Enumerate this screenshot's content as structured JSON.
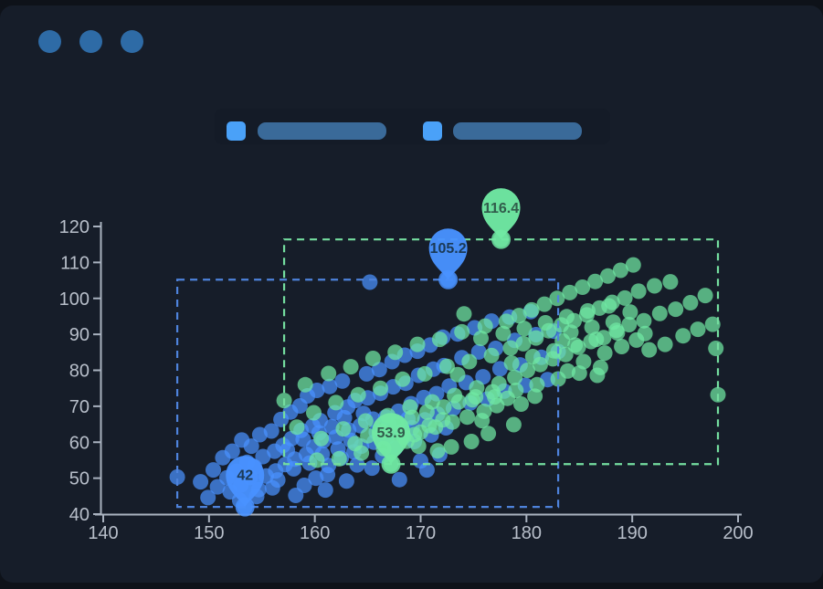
{
  "window": {
    "frame_background": "#0e1219",
    "background": "#161d29",
    "control_dot_color": "#2e6ba6",
    "control_dots": [
      "window-dot-1",
      "window-dot-2",
      "window-dot-3"
    ]
  },
  "legend": {
    "background": "#141b27",
    "items": [
      {
        "label_text": "",
        "label_redacted": true,
        "swatch_color": "#4aa1f8",
        "bar_color": "#3a6a99"
      },
      {
        "label_text": "",
        "label_redacted": true,
        "swatch_color": "#4aa1f8",
        "bar_color": "#3a6a99"
      }
    ]
  },
  "chart_data": {
    "type": "scatter",
    "title": "",
    "xlabel": "",
    "ylabel": "",
    "xlim": [
      140,
      200
    ],
    "ylim": [
      40,
      120
    ],
    "x_ticks": [
      140,
      150,
      160,
      170,
      180,
      190,
      200
    ],
    "y_ticks": [
      40,
      50,
      60,
      70,
      80,
      90,
      100,
      110,
      120
    ],
    "grid": false,
    "legend_position": "top",
    "axis_color": "#a9b2bf",
    "tick_label_color": "#b8bfca",
    "series": [
      {
        "name": "series-blue",
        "color": "#4992ff",
        "dash_color": "#4e83dc",
        "pin_label_color": "#1b3a57",
        "bounds": {
          "x": [
            147.0,
            183.0
          ],
          "y": [
            42.0,
            105.2
          ]
        },
        "max_point": {
          "x": 172.6,
          "y": 105.2,
          "label": "105.2"
        },
        "min_point": {
          "x": 153.4,
          "y": 42.0,
          "label": "42"
        },
        "points": [
          [
            147.0,
            50.3
          ],
          [
            149.2,
            49.0
          ],
          [
            149.9,
            44.6
          ],
          [
            150.4,
            52.3
          ],
          [
            150.8,
            47.6
          ],
          [
            151.3,
            55.7
          ],
          [
            151.7,
            50.1
          ],
          [
            152.0,
            46.2
          ],
          [
            152.2,
            57.5
          ],
          [
            152.6,
            51.9
          ],
          [
            152.9,
            43.8
          ],
          [
            153.0,
            48.1
          ],
          [
            153.1,
            60.6
          ],
          [
            153.4,
            42.0
          ],
          [
            153.6,
            54.4
          ],
          [
            153.9,
            50.2
          ],
          [
            154.0,
            58.9
          ],
          [
            154.3,
            53.1
          ],
          [
            154.5,
            44.9
          ],
          [
            154.7,
            46.8
          ],
          [
            154.8,
            62.1
          ],
          [
            155.1,
            56.0
          ],
          [
            155.4,
            50.6
          ],
          [
            155.9,
            63.1
          ],
          [
            156.0,
            47.3
          ],
          [
            156.2,
            57.5
          ],
          [
            156.3,
            52.0
          ],
          [
            156.5,
            49.5
          ],
          [
            156.8,
            66.3
          ],
          [
            157.0,
            59.1
          ],
          [
            157.2,
            53.8
          ],
          [
            157.4,
            57.8
          ],
          [
            157.7,
            68.4
          ],
          [
            157.8,
            61.0
          ],
          [
            158.0,
            52.6
          ],
          [
            158.1,
            55.3
          ],
          [
            158.2,
            45.2
          ],
          [
            158.6,
            70.1
          ],
          [
            158.7,
            63.3
          ],
          [
            158.9,
            60.8
          ],
          [
            159.0,
            48.0
          ],
          [
            159.2,
            56.6
          ],
          [
            159.3,
            72.9
          ],
          [
            159.5,
            54.2
          ],
          [
            159.8,
            64.5
          ],
          [
            159.9,
            58.7
          ],
          [
            160.1,
            50.0
          ],
          [
            160.2,
            74.4
          ],
          [
            160.4,
            62.6
          ],
          [
            160.5,
            66.0
          ],
          [
            160.7,
            56.7
          ],
          [
            160.8,
            60.4
          ],
          [
            161.0,
            46.7
          ],
          [
            161.2,
            51.0
          ],
          [
            161.3,
            53.5
          ],
          [
            161.4,
            75.5
          ],
          [
            161.6,
            64.3
          ],
          [
            161.9,
            68.2
          ],
          [
            162.0,
            61.4
          ],
          [
            162.2,
            58.1
          ],
          [
            162.5,
            55.6
          ],
          [
            162.6,
            77.0
          ],
          [
            162.8,
            66.8
          ],
          [
            163.0,
            49.2
          ],
          [
            163.1,
            69.8
          ],
          [
            163.2,
            63.4
          ],
          [
            163.4,
            60.5
          ],
          [
            163.7,
            57.3
          ],
          [
            163.8,
            71.6
          ],
          [
            164.0,
            53.7
          ],
          [
            164.3,
            64.6
          ],
          [
            164.4,
            58.9
          ],
          [
            164.6,
            68.0
          ],
          [
            164.9,
            79.0
          ],
          [
            165.0,
            72.3
          ],
          [
            165.2,
            104.5
          ],
          [
            165.4,
            52.8
          ],
          [
            165.5,
            66.4
          ],
          [
            165.6,
            60.0
          ],
          [
            165.8,
            62.8
          ],
          [
            166.1,
            80.2
          ],
          [
            166.2,
            73.6
          ],
          [
            166.4,
            56.2
          ],
          [
            166.7,
            67.0
          ],
          [
            166.8,
            61.3
          ],
          [
            167.0,
            64.8
          ],
          [
            167.3,
            82.4
          ],
          [
            167.4,
            75.4
          ],
          [
            167.6,
            58.4
          ],
          [
            167.9,
            68.6
          ],
          [
            168.0,
            49.6
          ],
          [
            168.2,
            62.9
          ],
          [
            168.5,
            84.2
          ],
          [
            168.6,
            76.4
          ],
          [
            168.8,
            66.5
          ],
          [
            169.1,
            70.7
          ],
          [
            169.2,
            64.0
          ],
          [
            169.4,
            60.2
          ],
          [
            169.7,
            85.3
          ],
          [
            169.8,
            78.6
          ],
          [
            170.0,
            54.8
          ],
          [
            170.3,
            72.4
          ],
          [
            170.4,
            66.2
          ],
          [
            170.6,
            52.3
          ],
          [
            170.9,
            87.0
          ],
          [
            171.0,
            62.0
          ],
          [
            171.2,
            80.3
          ],
          [
            171.5,
            73.5
          ],
          [
            171.6,
            67.8
          ],
          [
            171.8,
            56.5
          ],
          [
            172.1,
            89.2
          ],
          [
            172.2,
            81.3
          ],
          [
            172.4,
            64.0
          ],
          [
            172.6,
            105.2
          ],
          [
            172.7,
            75.6
          ],
          [
            173.1,
            69.4
          ],
          [
            173.5,
            90.1
          ],
          [
            173.9,
            83.5
          ],
          [
            174.3,
            76.6
          ],
          [
            174.7,
            70.9
          ],
          [
            175.1,
            91.8
          ],
          [
            175.5,
            85.1
          ],
          [
            175.9,
            78.2
          ],
          [
            176.3,
            72.0
          ],
          [
            176.7,
            93.7
          ],
          [
            177.1,
            86.1
          ],
          [
            177.5,
            80.4
          ],
          [
            177.9,
            74.2
          ],
          [
            178.4,
            94.8
          ],
          [
            178.9,
            88.3
          ],
          [
            179.4,
            81.5
          ],
          [
            179.9,
            75.8
          ],
          [
            180.4,
            96.3
          ],
          [
            180.9,
            89.9
          ],
          [
            181.4,
            83.6
          ],
          [
            182.0,
            77.4
          ],
          [
            182.6,
            90.9
          ],
          [
            183.0,
            85.2
          ]
        ]
      },
      {
        "name": "series-green",
        "color": "#70e9a3",
        "dash_color": "#74dd9f",
        "pin_label_color": "#315c4b",
        "bounds": {
          "x": [
            157.1,
            198.1
          ],
          "y": [
            53.9,
            116.4
          ]
        },
        "max_point": {
          "x": 177.6,
          "y": 116.4,
          "label": "116.4"
        },
        "min_point": {
          "x": 167.2,
          "y": 53.9,
          "label": "53.9"
        },
        "points": [
          [
            157.1,
            71.6
          ],
          [
            158.3,
            64.2
          ],
          [
            159.1,
            76.0
          ],
          [
            159.9,
            68.2
          ],
          [
            160.2,
            55.0
          ],
          [
            160.6,
            61.0
          ],
          [
            161.3,
            79.1
          ],
          [
            162.0,
            71.0
          ],
          [
            162.3,
            55.4
          ],
          [
            162.7,
            63.7
          ],
          [
            163.4,
            81.0
          ],
          [
            163.8,
            59.6
          ],
          [
            164.1,
            73.2
          ],
          [
            164.4,
            57.0
          ],
          [
            164.8,
            65.9
          ],
          [
            165.0,
            61.8
          ],
          [
            165.5,
            83.3
          ],
          [
            166.2,
            75.0
          ],
          [
            166.4,
            63.0
          ],
          [
            166.5,
            58.2
          ],
          [
            166.9,
            67.4
          ],
          [
            167.2,
            53.9
          ],
          [
            167.6,
            85.0
          ],
          [
            167.8,
            65.2
          ],
          [
            168.3,
            77.5
          ],
          [
            168.4,
            61.5
          ],
          [
            168.7,
            60.3
          ],
          [
            169.0,
            69.8
          ],
          [
            169.2,
            66.9
          ],
          [
            169.4,
            62.1
          ],
          [
            169.7,
            87.2
          ],
          [
            169.8,
            58.9
          ],
          [
            170.0,
            62.8
          ],
          [
            170.4,
            79.0
          ],
          [
            170.6,
            68.4
          ],
          [
            170.8,
            64.6
          ],
          [
            171.1,
            71.2
          ],
          [
            171.4,
            64.2
          ],
          [
            171.6,
            57.6
          ],
          [
            171.8,
            88.6
          ],
          [
            172.1,
            66.2
          ],
          [
            172.2,
            69.8
          ],
          [
            172.5,
            81.1
          ],
          [
            172.9,
            58.7
          ],
          [
            173.0,
            65.6
          ],
          [
            173.2,
            73.0
          ],
          [
            173.5,
            78.8
          ],
          [
            173.6,
            71.2
          ],
          [
            173.9,
            90.7
          ],
          [
            174.1,
            95.7
          ],
          [
            174.4,
            67.0
          ],
          [
            174.6,
            82.4
          ],
          [
            174.8,
            60.2
          ],
          [
            174.9,
            71.8
          ],
          [
            175.2,
            72.6
          ],
          [
            175.3,
            75.1
          ],
          [
            175.7,
            88.9
          ],
          [
            175.8,
            66.0
          ],
          [
            176.0,
            68.6
          ],
          [
            176.1,
            92.3
          ],
          [
            176.4,
            62.4
          ],
          [
            176.7,
            84.1
          ],
          [
            176.8,
            74.0
          ],
          [
            177.0,
            72.6
          ],
          [
            177.2,
            70.2
          ],
          [
            177.4,
            76.3
          ],
          [
            177.6,
            116.4
          ],
          [
            177.8,
            90.2
          ],
          [
            178.1,
            93.6
          ],
          [
            178.2,
            72.2
          ],
          [
            178.5,
            86.2
          ],
          [
            178.6,
            82.0
          ],
          [
            178.8,
            64.9
          ],
          [
            178.9,
            78.0
          ],
          [
            179.0,
            74.4
          ],
          [
            179.3,
            95.2
          ],
          [
            179.5,
            70.6
          ],
          [
            179.7,
            87.4
          ],
          [
            179.8,
            91.6
          ],
          [
            180.1,
            80.0
          ],
          [
            180.5,
            96.8
          ],
          [
            180.6,
            83.8
          ],
          [
            180.8,
            72.8
          ],
          [
            180.9,
            89.0
          ],
          [
            181.0,
            76.0
          ],
          [
            181.3,
            81.6
          ],
          [
            181.7,
            98.4
          ],
          [
            181.8,
            93.2
          ],
          [
            182.1,
            91.0
          ],
          [
            182.5,
            83.2
          ],
          [
            182.6,
            85.4
          ],
          [
            182.9,
            100.0
          ],
          [
            183.0,
            77.6
          ],
          [
            183.3,
            92.6
          ],
          [
            183.4,
            88.2
          ],
          [
            183.7,
            84.4
          ],
          [
            183.8,
            94.9
          ],
          [
            183.9,
            79.8
          ],
          [
            184.1,
            101.6
          ],
          [
            184.2,
            90.6
          ],
          [
            184.5,
            93.8
          ],
          [
            184.6,
            87.0
          ],
          [
            184.9,
            86.4
          ],
          [
            185.0,
            79.2
          ],
          [
            185.3,
            103.1
          ],
          [
            185.4,
            82.4
          ],
          [
            185.7,
            95.4
          ],
          [
            185.8,
            96.5
          ],
          [
            186.1,
            88.0
          ],
          [
            186.2,
            92.0
          ],
          [
            186.5,
            104.7
          ],
          [
            186.6,
            88.6
          ],
          [
            186.7,
            78.6
          ],
          [
            186.9,
            97.3
          ],
          [
            187.0,
            80.8
          ],
          [
            187.3,
            89.1
          ],
          [
            187.4,
            84.8
          ],
          [
            187.7,
            106.2
          ],
          [
            187.8,
            97.9
          ],
          [
            188.1,
            98.9
          ],
          [
            188.2,
            93.4
          ],
          [
            188.5,
            91.1
          ],
          [
            188.6,
            90.4
          ],
          [
            188.9,
            107.8
          ],
          [
            189.0,
            86.6
          ],
          [
            189.3,
            100.1
          ],
          [
            189.7,
            92.7
          ],
          [
            189.8,
            96.2
          ],
          [
            190.1,
            109.3
          ],
          [
            190.4,
            88.4
          ],
          [
            190.6,
            102.0
          ],
          [
            191.1,
            93.8
          ],
          [
            191.2,
            90.2
          ],
          [
            191.6,
            85.7
          ],
          [
            192.1,
            103.5
          ],
          [
            192.6,
            95.8
          ],
          [
            193.1,
            87.2
          ],
          [
            193.6,
            104.6
          ],
          [
            194.1,
            97.0
          ],
          [
            194.8,
            89.6
          ],
          [
            195.5,
            98.8
          ],
          [
            196.2,
            91.4
          ],
          [
            196.9,
            100.8
          ],
          [
            197.6,
            92.8
          ],
          [
            197.9,
            86.1
          ],
          [
            198.1,
            73.2
          ]
        ]
      }
    ]
  }
}
